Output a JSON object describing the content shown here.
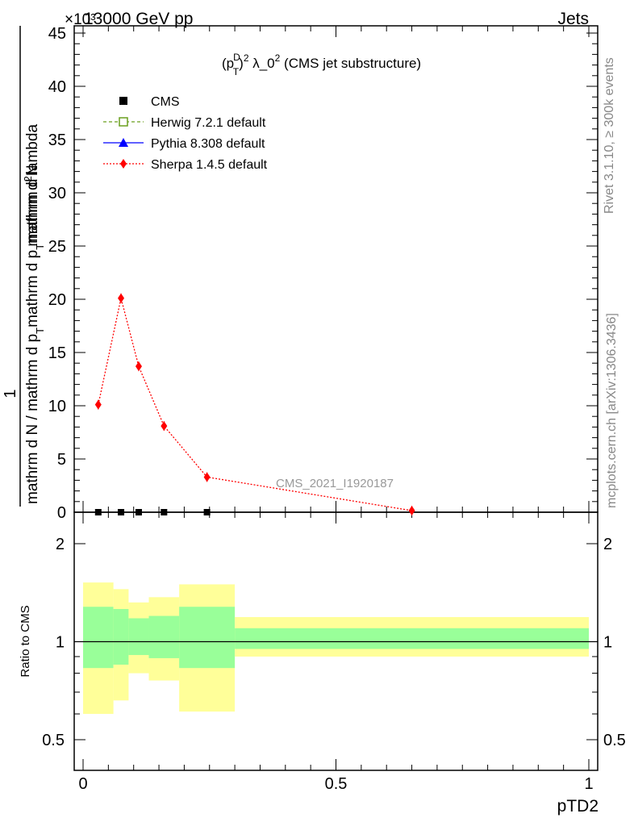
{
  "header": {
    "left_title": "13000 GeV pp",
    "right_title": "Jets",
    "exponent_label": "×10³"
  },
  "side_labels": {
    "rivet": "Rivet 3.1.10, ≥ 300k events",
    "mcplots": "mcplots.cern.ch [arXiv:1306.3436]"
  },
  "main_plot": {
    "title": "(p_T^D)^2 λ_0^2 (CMS jet substructure)",
    "title_parts": {
      "p": "(p",
      "sup_d": "D",
      "sub_t": "T",
      "close": ")",
      "sup_2a": "2",
      "lambda": " λ_0",
      "sup_2b": "2",
      "rest": " (CMS jet substructure)"
    },
    "analysis_tag": "CMS_2021_I1920187",
    "ylabel_numerator": "1",
    "ylabel_denominator_parts": {
      "a": "mathrm d N / mathrm d p",
      "sub1": "T",
      "b": "mathrm d p",
      "sub2": "T",
      "c": "mathrm d lambda"
    },
    "ylabel_top_parts": {
      "a": "mathrm d",
      "sup": "2",
      "b": "N"
    },
    "ylabel_denominator": "mathrm d N / mathrm d p_T mathrm d p_T mathrm d lambda",
    "ylabel_numerator_full": "mathrm d^2N",
    "yticks": [
      "0",
      "5",
      "10",
      "15",
      "20",
      "25",
      "30",
      "35",
      "40",
      "45"
    ]
  },
  "legend": [
    {
      "label": "CMS",
      "marker": "square",
      "color": "#000000"
    },
    {
      "label": "Herwig 7.2.1 default",
      "marker": "open-square",
      "color": "#6a9f1e"
    },
    {
      "label": "Pythia 8.308 default",
      "marker": "triangle",
      "color": "#0000ff"
    },
    {
      "label": "Sherpa 1.4.5 default",
      "marker": "diamond",
      "color": "#ff0000"
    }
  ],
  "ratio_plot": {
    "ylabel": "Ratio to CMS",
    "yticks": [
      "0.5",
      "1",
      "2"
    ]
  },
  "x_axis": {
    "label": "pTD2",
    "ticks": [
      "0",
      "0.5",
      "1"
    ]
  },
  "chart_data": {
    "type": "line",
    "title": "(p_T^D)^2 λ_0^2 (CMS jet substructure)",
    "xlabel": "pTD2",
    "ylabel": "1/(dN/dp_T) d²N/(dp_T dλ)",
    "xlim": [
      0,
      1
    ],
    "ylim": [
      0,
      45
    ],
    "y_scale_factor": 1000,
    "bin_edges": [
      0.0,
      0.06,
      0.09,
      0.13,
      0.19,
      0.3,
      1.0
    ],
    "x": [
      0.03,
      0.075,
      0.11,
      0.16,
      0.245,
      0.65
    ],
    "series": [
      {
        "name": "CMS",
        "values": [
          0.0,
          0.0,
          0.0,
          0.0,
          0.0,
          0.0
        ]
      },
      {
        "name": "Sherpa 1.4.5 default",
        "values": [
          10.1,
          20.1,
          13.7,
          8.1,
          3.3,
          0.15
        ]
      }
    ],
    "ratio": {
      "ylabel": "Ratio to CMS",
      "ylim": [
        0.4,
        2.4
      ],
      "scale": "log",
      "reference": 1,
      "bands": [
        {
          "x0": 0.0,
          "x1": 0.06,
          "green": [
            0.83,
            1.28
          ],
          "yellow": [
            0.6,
            1.52
          ]
        },
        {
          "x0": 0.06,
          "x1": 0.09,
          "green": [
            0.85,
            1.26
          ],
          "yellow": [
            0.66,
            1.45
          ]
        },
        {
          "x0": 0.09,
          "x1": 0.13,
          "green": [
            0.91,
            1.18
          ],
          "yellow": [
            0.8,
            1.32
          ]
        },
        {
          "x0": 0.13,
          "x1": 0.19,
          "green": [
            0.89,
            1.2
          ],
          "yellow": [
            0.76,
            1.37
          ]
        },
        {
          "x0": 0.19,
          "x1": 0.3,
          "green": [
            0.83,
            1.28
          ],
          "yellow": [
            0.61,
            1.5
          ]
        },
        {
          "x0": 0.3,
          "x1": 1.0,
          "green": [
            0.95,
            1.1
          ],
          "yellow": [
            0.9,
            1.19
          ]
        }
      ]
    }
  }
}
